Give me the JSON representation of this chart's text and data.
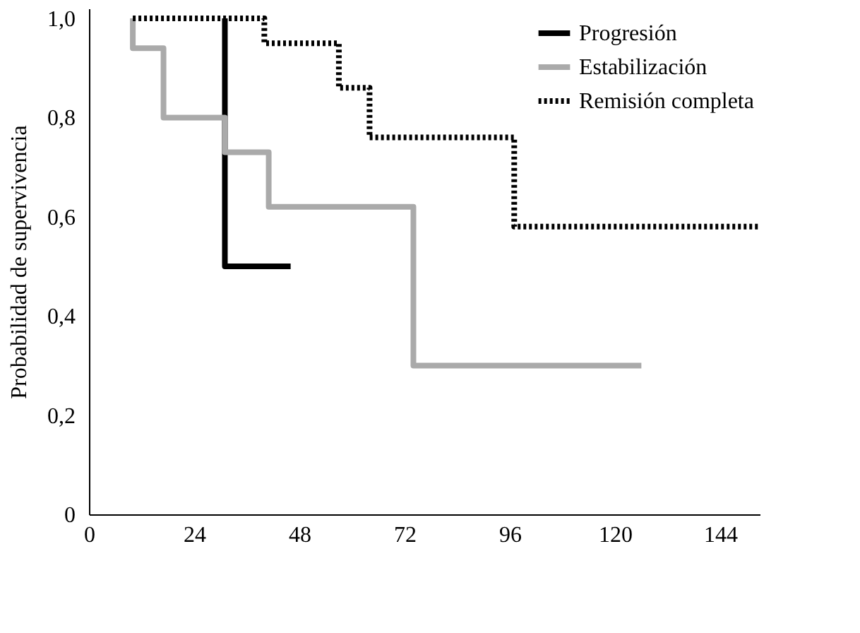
{
  "chart_data": {
    "type": "step",
    "ylabel": "Probabilidad de supervivencia",
    "xlim": [
      0,
      153
    ],
    "xticks": [
      0,
      24,
      48,
      72,
      96,
      120,
      144
    ],
    "ylim": [
      0,
      1.02
    ],
    "yticks": [
      0,
      {
        "value": 0.2,
        "label": "0,2"
      },
      {
        "value": 0.4,
        "label": "0,4"
      },
      {
        "value": 0.6,
        "label": "0,6"
      },
      {
        "value": 0.8,
        "label": "0,8"
      },
      {
        "value": 1.0,
        "label": "1,0"
      }
    ],
    "grid": false,
    "legend": "top right",
    "series": [
      {
        "name": "Progresión",
        "color": "#000000",
        "line_style": "solid",
        "x": [
          31,
          31,
          46
        ],
        "values": [
          1.0,
          0.5,
          0.5
        ]
      },
      {
        "name": "Estabilización",
        "color": "#aaaaaa",
        "line_style": "solid",
        "x": [
          10,
          10,
          17,
          31,
          41,
          74,
          126
        ],
        "values": [
          1.0,
          0.94,
          0.8,
          0.73,
          0.62,
          0.3,
          0.3
        ]
      },
      {
        "name": "Remisión completa",
        "color": "#000000",
        "line_style": "dotted",
        "x": [
          10,
          40,
          57,
          64,
          97,
          153
        ],
        "values": [
          1.0,
          0.95,
          0.86,
          0.76,
          0.58,
          0.58
        ]
      }
    ]
  }
}
